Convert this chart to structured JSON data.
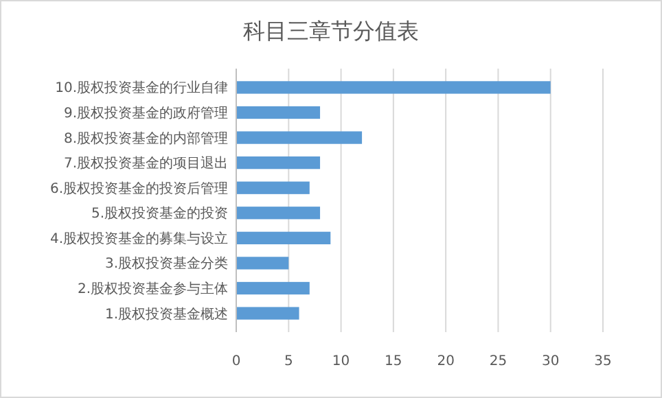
{
  "chart_data": {
    "type": "bar",
    "orientation": "horizontal",
    "title": "科目三章节分值表",
    "categories": [
      "10.股权投资基金的行业自律",
      "9.股权投资基金的政府管理",
      "8.股权投资基金的内部管理",
      "7.股权投资基金的项目退出",
      "6.股权投资基金的投资后管理",
      "5.股权投资基金的投资",
      "4.股权投资基金的募集与设立",
      "3.股权投资基金分类",
      "2.股权投资基金参与主体",
      "1.股权投资基金概述"
    ],
    "values": [
      30,
      8,
      12,
      8,
      7,
      8,
      9,
      5,
      7,
      6
    ],
    "color": "#5b9bd5",
    "xlim": [
      0,
      35
    ],
    "xticks": [
      0,
      5,
      10,
      15,
      20,
      25,
      30,
      35
    ],
    "grid": "x"
  }
}
